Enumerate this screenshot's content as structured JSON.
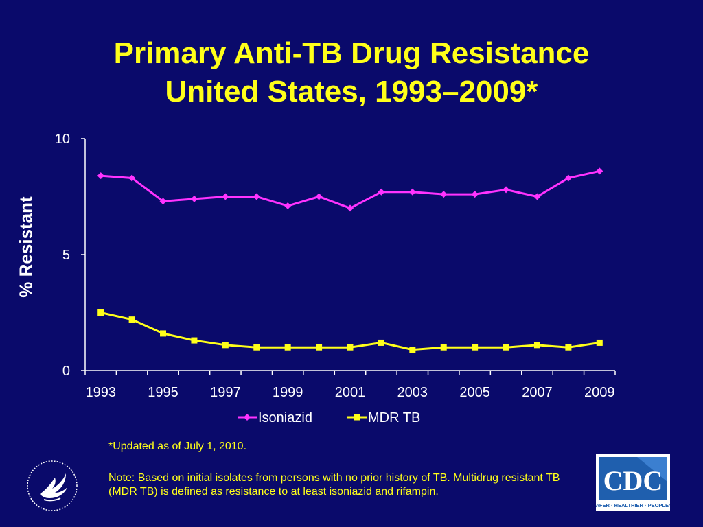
{
  "slide": {
    "title_line1": "Primary Anti-TB Drug Resistance",
    "title_line2": "United States, 1993–2009*",
    "footnote": "*Updated as of July 1, 2010.",
    "note": "Note: Based on initial isolates from persons with no prior history of TB. Multidrug resistant TB (MDR TB) is defined as resistance to at least isoniazid and rifampin.",
    "cdc_logo_text": "CDC",
    "cdc_tagline": "SAFER · HEALTHIER · PEOPLE™"
  },
  "colors": {
    "background": "#0a0a6b",
    "title": "#ffff1a",
    "isoniazid": "#ff33ff",
    "mdr": "#ffff1a",
    "text": "#ffffff"
  },
  "chart_data": {
    "type": "line",
    "title": "Primary Anti-TB Drug Resistance United States, 1993–2009*",
    "xlabel": "",
    "ylabel": "% Resistant",
    "x": [
      1993,
      1994,
      1995,
      1996,
      1997,
      1998,
      1999,
      2000,
      2001,
      2002,
      2003,
      2004,
      2005,
      2006,
      2007,
      2008,
      2009
    ],
    "x_tick_labels": [
      "1993",
      "1995",
      "1997",
      "1999",
      "2001",
      "2003",
      "2005",
      "2007",
      "2009"
    ],
    "y_tick_labels": [
      "0",
      "5",
      "10"
    ],
    "ylim": [
      0,
      10
    ],
    "grid": false,
    "legend_position": "bottom",
    "series": [
      {
        "name": "Isoniazid",
        "marker": "diamond",
        "values": [
          8.4,
          8.3,
          7.3,
          7.4,
          7.5,
          7.5,
          7.1,
          7.5,
          7.0,
          7.7,
          7.7,
          7.6,
          7.6,
          7.8,
          7.5,
          8.3,
          8.6
        ]
      },
      {
        "name": "MDR TB",
        "marker": "square",
        "values": [
          2.5,
          2.2,
          1.6,
          1.3,
          1.1,
          1.0,
          1.0,
          1.0,
          1.0,
          1.2,
          0.9,
          1.0,
          1.0,
          1.0,
          1.1,
          1.0,
          1.2
        ]
      }
    ]
  }
}
